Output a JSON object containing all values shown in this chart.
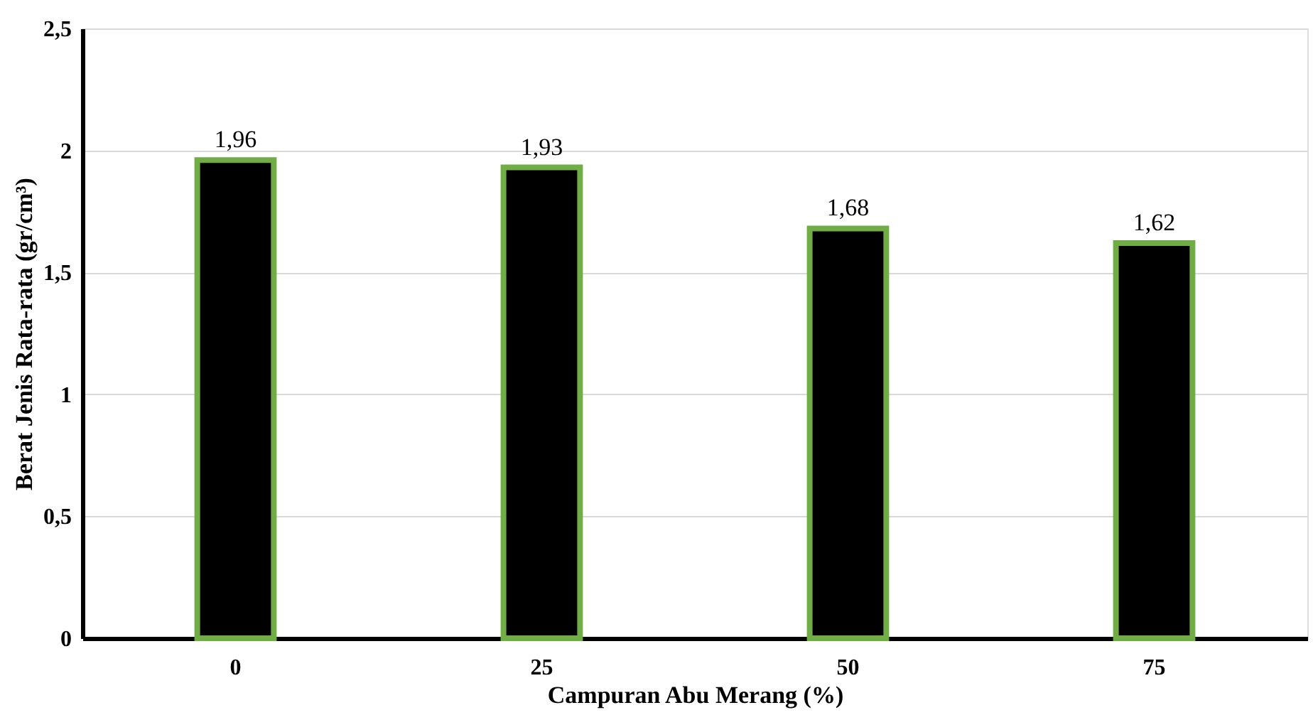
{
  "chart_data": {
    "type": "bar",
    "xlabel": "Campuran Abu Merang (%)",
    "ylabel": "Berat Jenis Rata-rata (gr/cm³)",
    "categories": [
      "0",
      "25",
      "50",
      "75"
    ],
    "values": [
      1.96,
      1.93,
      1.68,
      1.62
    ],
    "value_labels": [
      "1,96",
      "1,93",
      "1,68",
      "1,62"
    ],
    "color": "#000000",
    "ylim": [
      0,
      2.5
    ],
    "yticks": [
      0,
      {
        "value": 0.5,
        "label": "0,5"
      },
      1,
      {
        "value": 1.5,
        "label": "1,5"
      },
      2,
      {
        "value": 2.5,
        "label": "2,5"
      }
    ],
    "grid": "y"
  }
}
